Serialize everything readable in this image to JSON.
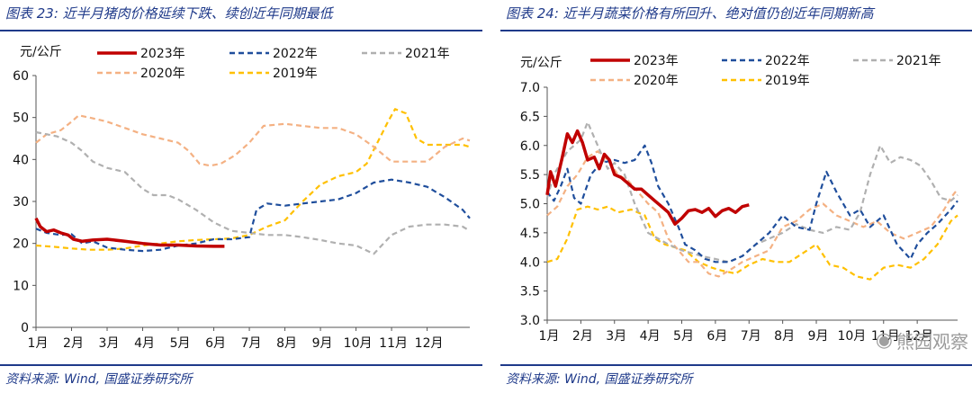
{
  "charts": [
    {
      "title": "图表 23:  近半月猪肉价格延续下跌、续创近年同期最低",
      "source": "资料来源: Wind, 国盛证券研究所"
    },
    {
      "title": "图表 24:  近半月蔬菜价格有所回升、绝对值仍创近年同期新高",
      "source": "资料来源: Wind, 国盛证券研究所"
    }
  ],
  "watermark": {
    "text": "熊园观察",
    "icon": "wechat-icon"
  },
  "chart_data": [
    {
      "type": "line",
      "ylabel": "元/公斤",
      "ylim": [
        0,
        60
      ],
      "yticks": [
        0,
        10,
        20,
        30,
        40,
        50,
        60
      ],
      "categories": [
        "1月",
        "2月",
        "3月",
        "4月",
        "5月",
        "6月",
        "7月",
        "8月",
        "9月",
        "10月",
        "11月",
        "12月"
      ],
      "xlim": [
        1,
        13.2
      ],
      "grid": false,
      "legend": "top",
      "series": [
        {
          "name": "2023年",
          "color": "#c00000",
          "dash": "solid",
          "width": 3.5,
          "x": [
            1,
            1.12,
            1.3,
            1.5,
            1.7,
            1.9,
            2.05,
            2.3,
            2.6,
            3.0,
            3.5,
            4.0,
            4.5,
            5.0,
            5.5,
            6.0,
            6.3
          ],
          "y": [
            26,
            24,
            22.8,
            23.2,
            22.5,
            22,
            21,
            20.5,
            20.8,
            21,
            20.5,
            20,
            19.6,
            19.6,
            19.4,
            19.3,
            19.3
          ]
        },
        {
          "name": "2022年",
          "color": "#1f4e9c",
          "dash": "6 4",
          "width": 2.2,
          "x": [
            1,
            1.3,
            1.7,
            2.0,
            2.3,
            2.6,
            3.0,
            3.5,
            4.0,
            4.5,
            5.0,
            5.5,
            6.0,
            6.5,
            7.0,
            7.2,
            7.5,
            8.0,
            8.5,
            9.0,
            9.5,
            10.0,
            10.5,
            11.0,
            11.5,
            12.0,
            12.5,
            13.0,
            13.2
          ],
          "y": [
            23.5,
            22.5,
            22,
            22.2,
            20,
            20.5,
            19,
            18.5,
            18.2,
            18.5,
            19.5,
            20,
            21,
            21,
            21.5,
            28,
            29.5,
            29,
            29.5,
            30,
            30.5,
            32,
            34.5,
            35.2,
            34.5,
            33.5,
            31,
            28,
            26
          ]
        },
        {
          "name": "2021年",
          "color": "#b0b0b0",
          "dash": "6 4",
          "width": 2.2,
          "x": [
            1,
            1.3,
            1.6,
            2.0,
            2.3,
            2.6,
            3.0,
            3.5,
            4.0,
            4.3,
            4.7,
            5.0,
            5.5,
            6.0,
            6.5,
            7.0,
            7.5,
            8.0,
            8.5,
            9.0,
            9.5,
            10.0,
            10.5,
            11.0,
            11.5,
            12.0,
            12.5,
            13.0,
            13.2
          ],
          "y": [
            46.5,
            46,
            45.5,
            44,
            42,
            39.5,
            38,
            37,
            33,
            31.5,
            31.5,
            30.5,
            28,
            25,
            23,
            22.5,
            22,
            22,
            21.5,
            20.8,
            20,
            19.5,
            17.5,
            22,
            24,
            24.5,
            24.5,
            24,
            23
          ]
        },
        {
          "name": "2020年",
          "color": "#f4b183",
          "dash": "6 4",
          "width": 2.2,
          "x": [
            1,
            1.3,
            1.7,
            2.0,
            2.2,
            2.5,
            3.0,
            3.5,
            4.0,
            4.5,
            5.0,
            5.3,
            5.6,
            5.9,
            6.2,
            6.6,
            7.0,
            7.4,
            8.0,
            8.5,
            9.0,
            9.5,
            10.0,
            10.5,
            11.0,
            11.5,
            12.0,
            12.5,
            13.0,
            13.2
          ],
          "y": [
            44,
            46,
            47,
            49,
            50.5,
            50,
            49,
            47.5,
            46,
            45,
            44,
            42,
            39,
            38.5,
            39,
            41,
            44,
            48,
            48.5,
            48,
            47.5,
            47.5,
            46,
            43,
            39.5,
            39.5,
            39.5,
            43,
            45,
            44.5
          ]
        },
        {
          "name": "2019年",
          "color": "#ffc000",
          "dash": "6 4",
          "width": 2.2,
          "x": [
            1,
            1.5,
            2.0,
            2.5,
            3.0,
            3.5,
            4.0,
            4.5,
            5.0,
            5.5,
            6.0,
            6.5,
            7.0,
            7.5,
            8.0,
            8.5,
            9.0,
            9.5,
            10.0,
            10.3,
            10.6,
            10.9,
            11.1,
            11.4,
            11.7,
            12.0,
            12.5,
            13.0,
            13.2
          ],
          "y": [
            19.5,
            19.2,
            18.8,
            18.5,
            18.5,
            18.8,
            19.5,
            20,
            20.5,
            20.8,
            21,
            21.2,
            22,
            24,
            25.5,
            30,
            34,
            36,
            37,
            39,
            44,
            49,
            52,
            51,
            45,
            43.5,
            43.5,
            43.5,
            43
          ]
        }
      ]
    },
    {
      "type": "line",
      "ylabel": "元/公斤",
      "ylim": [
        3.0,
        7.0
      ],
      "yticks": [
        "3.0",
        "3.5",
        "4.0",
        "4.5",
        "5.0",
        "5.5",
        "6.0",
        "6.5",
        "7.0"
      ],
      "categories": [
        "1月",
        "2月",
        "3月",
        "4月",
        "5月",
        "6月",
        "7月",
        "8月",
        "9月",
        "10月",
        "11月",
        "12月"
      ],
      "xlim": [
        1,
        13.2
      ],
      "grid": false,
      "legend": "top",
      "series": [
        {
          "name": "2023年",
          "color": "#c00000",
          "dash": "solid",
          "width": 3.5,
          "x": [
            1,
            1.1,
            1.25,
            1.45,
            1.6,
            1.75,
            1.9,
            2.05,
            2.2,
            2.4,
            2.55,
            2.7,
            2.85,
            3.0,
            3.2,
            3.4,
            3.6,
            3.8,
            4.0,
            4.2,
            4.4,
            4.6,
            4.8,
            5.0,
            5.2,
            5.4,
            5.6,
            5.8,
            6.0,
            6.2,
            6.4,
            6.6,
            6.8,
            7.0
          ],
          "y": [
            5.15,
            5.55,
            5.3,
            5.8,
            6.2,
            6.05,
            6.25,
            6.05,
            5.75,
            5.8,
            5.6,
            5.85,
            5.75,
            5.5,
            5.45,
            5.35,
            5.25,
            5.25,
            5.15,
            5.05,
            4.95,
            4.85,
            4.65,
            4.75,
            4.88,
            4.9,
            4.85,
            4.92,
            4.78,
            4.88,
            4.92,
            4.85,
            4.95,
            4.98
          ]
        },
        {
          "name": "2022年",
          "color": "#1f4e9c",
          "dash": "6 4",
          "width": 2.2,
          "x": [
            1,
            1.2,
            1.4,
            1.6,
            1.8,
            2.0,
            2.3,
            2.6,
            3.0,
            3.3,
            3.6,
            3.9,
            4.1,
            4.3,
            4.6,
            4.9,
            5.1,
            5.4,
            5.7,
            6.0,
            6.4,
            6.8,
            7.2,
            7.6,
            8.0,
            8.4,
            8.8,
            9.0,
            9.3,
            9.6,
            10.0,
            10.3,
            10.6,
            11.0,
            11.4,
            11.8,
            12.0,
            12.3,
            12.6,
            13.0,
            13.2
          ],
          "y": [
            5.2,
            5.05,
            5.3,
            5.6,
            5.1,
            5.0,
            5.5,
            5.7,
            5.75,
            5.7,
            5.75,
            6.0,
            5.7,
            5.3,
            5.0,
            4.6,
            4.3,
            4.2,
            4.05,
            4.0,
            4.0,
            4.1,
            4.3,
            4.5,
            4.8,
            4.6,
            4.55,
            5.0,
            5.55,
            5.2,
            4.8,
            4.9,
            4.6,
            4.8,
            4.3,
            4.05,
            4.3,
            4.5,
            4.65,
            4.9,
            5.05
          ]
        },
        {
          "name": "2021年",
          "color": "#b0b0b0",
          "dash": "6 4",
          "width": 2.2,
          "x": [
            1,
            1.2,
            1.4,
            1.6,
            1.8,
            2.0,
            2.2,
            2.5,
            2.8,
            3.0,
            3.3,
            3.6,
            4.0,
            4.3,
            4.6,
            5.0,
            5.3,
            5.6,
            6.0,
            6.4,
            6.8,
            7.2,
            7.6,
            8.0,
            8.4,
            8.8,
            9.2,
            9.6,
            10.0,
            10.3,
            10.6,
            10.9,
            11.2,
            11.5,
            11.8,
            12.1,
            12.4,
            12.7,
            13.0,
            13.2
          ],
          "y": [
            5.1,
            5.5,
            5.7,
            5.9,
            6.0,
            6.1,
            6.4,
            6.0,
            5.6,
            5.7,
            5.5,
            5.0,
            4.5,
            4.4,
            4.3,
            4.2,
            4.15,
            4.1,
            4.05,
            4.0,
            4.1,
            4.3,
            4.4,
            4.5,
            4.65,
            4.55,
            4.5,
            4.6,
            4.55,
            4.85,
            5.5,
            6.0,
            5.7,
            5.8,
            5.75,
            5.65,
            5.4,
            5.1,
            5.05,
            5.15
          ]
        },
        {
          "name": "2020年",
          "color": "#f4b183",
          "dash": "6 4",
          "width": 2.2,
          "x": [
            1,
            1.3,
            1.6,
            1.9,
            2.2,
            2.5,
            2.8,
            3.1,
            3.4,
            3.7,
            4.0,
            4.3,
            4.6,
            4.9,
            5.2,
            5.5,
            5.8,
            6.1,
            6.4,
            6.8,
            7.2,
            7.6,
            8.0,
            8.4,
            8.8,
            9.2,
            9.6,
            10.0,
            10.4,
            10.8,
            11.2,
            11.6,
            12.0,
            12.4,
            12.8,
            13.0,
            13.2
          ],
          "y": [
            4.8,
            4.95,
            5.3,
            5.5,
            5.8,
            5.9,
            5.75,
            5.5,
            5.4,
            5.2,
            5.0,
            4.85,
            4.4,
            4.2,
            4.0,
            4.0,
            3.8,
            3.75,
            3.85,
            4.0,
            4.1,
            4.2,
            4.6,
            4.7,
            4.9,
            5.0,
            4.8,
            4.7,
            4.6,
            4.7,
            4.5,
            4.4,
            4.5,
            4.6,
            4.9,
            5.1,
            5.25
          ]
        },
        {
          "name": "2019年",
          "color": "#ffc000",
          "dash": "6 4",
          "width": 2.2,
          "x": [
            1,
            1.3,
            1.6,
            1.9,
            2.2,
            2.5,
            2.8,
            3.1,
            3.5,
            3.9,
            4.2,
            4.5,
            4.8,
            5.1,
            5.5,
            5.9,
            6.2,
            6.6,
            7.0,
            7.4,
            7.8,
            8.2,
            8.6,
            9.0,
            9.4,
            9.8,
            10.2,
            10.6,
            11.0,
            11.4,
            11.8,
            12.2,
            12.6,
            13.0,
            13.2
          ],
          "y": [
            4.0,
            4.05,
            4.4,
            4.9,
            4.95,
            4.9,
            4.95,
            4.85,
            4.9,
            4.8,
            4.4,
            4.3,
            4.25,
            4.2,
            4.0,
            3.9,
            3.85,
            3.8,
            3.95,
            4.05,
            4.0,
            4.0,
            4.15,
            4.3,
            3.95,
            3.9,
            3.75,
            3.7,
            3.9,
            3.95,
            3.9,
            4.05,
            4.3,
            4.7,
            4.8
          ]
        }
      ]
    }
  ]
}
